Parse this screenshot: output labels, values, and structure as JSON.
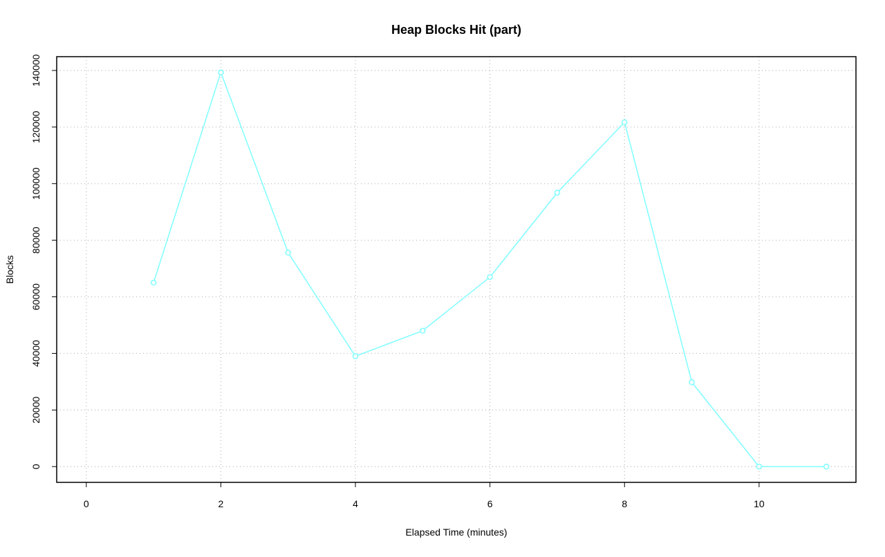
{
  "chart_data": {
    "type": "line",
    "title": "Heap Blocks Hit (part)",
    "xlabel": "Elapsed Time (minutes)",
    "ylabel": "Blocks",
    "x": [
      1,
      2,
      3,
      4,
      5,
      6,
      7,
      8,
      9,
      10,
      11
    ],
    "values": [
      65000,
      139300,
      75600,
      39000,
      48000,
      67000,
      96800,
      121700,
      29800,
      0,
      0
    ],
    "color": "#7fffff",
    "xlim": [
      -0.44,
      11.44
    ],
    "xticks": [
      0,
      2,
      4,
      6,
      8,
      10
    ],
    "ylim": [
      -5572,
      144872
    ],
    "yticks": [
      0,
      20000,
      40000,
      60000,
      80000,
      100000,
      120000,
      140000
    ],
    "grid": true
  }
}
